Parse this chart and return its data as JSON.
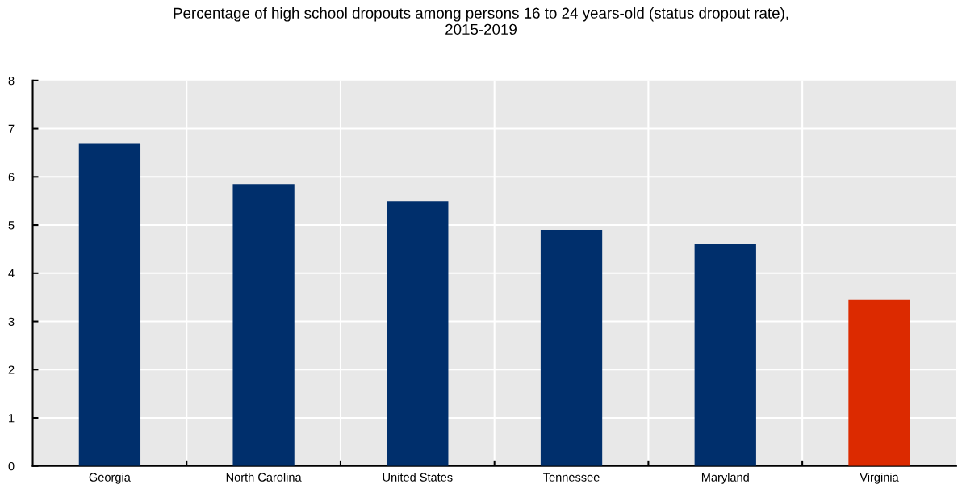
{
  "chart_data": {
    "type": "bar",
    "title": "Percentage of high school dropouts among persons 16 to 24 years-old (status dropout rate),\n2015-2019",
    "categories": [
      "Georgia",
      "North Carolina",
      "United States",
      "Tennessee",
      "Maryland",
      "Virginia"
    ],
    "values": [
      6.7,
      5.85,
      5.5,
      4.9,
      4.6,
      3.45
    ],
    "colors": [
      "#002f6c",
      "#002f6c",
      "#002f6c",
      "#002f6c",
      "#002f6c",
      "#dc2a00"
    ],
    "ylim": [
      0,
      8
    ],
    "yticks": [
      0,
      1,
      2,
      3,
      4,
      5,
      6,
      7,
      8
    ],
    "grid": true
  }
}
